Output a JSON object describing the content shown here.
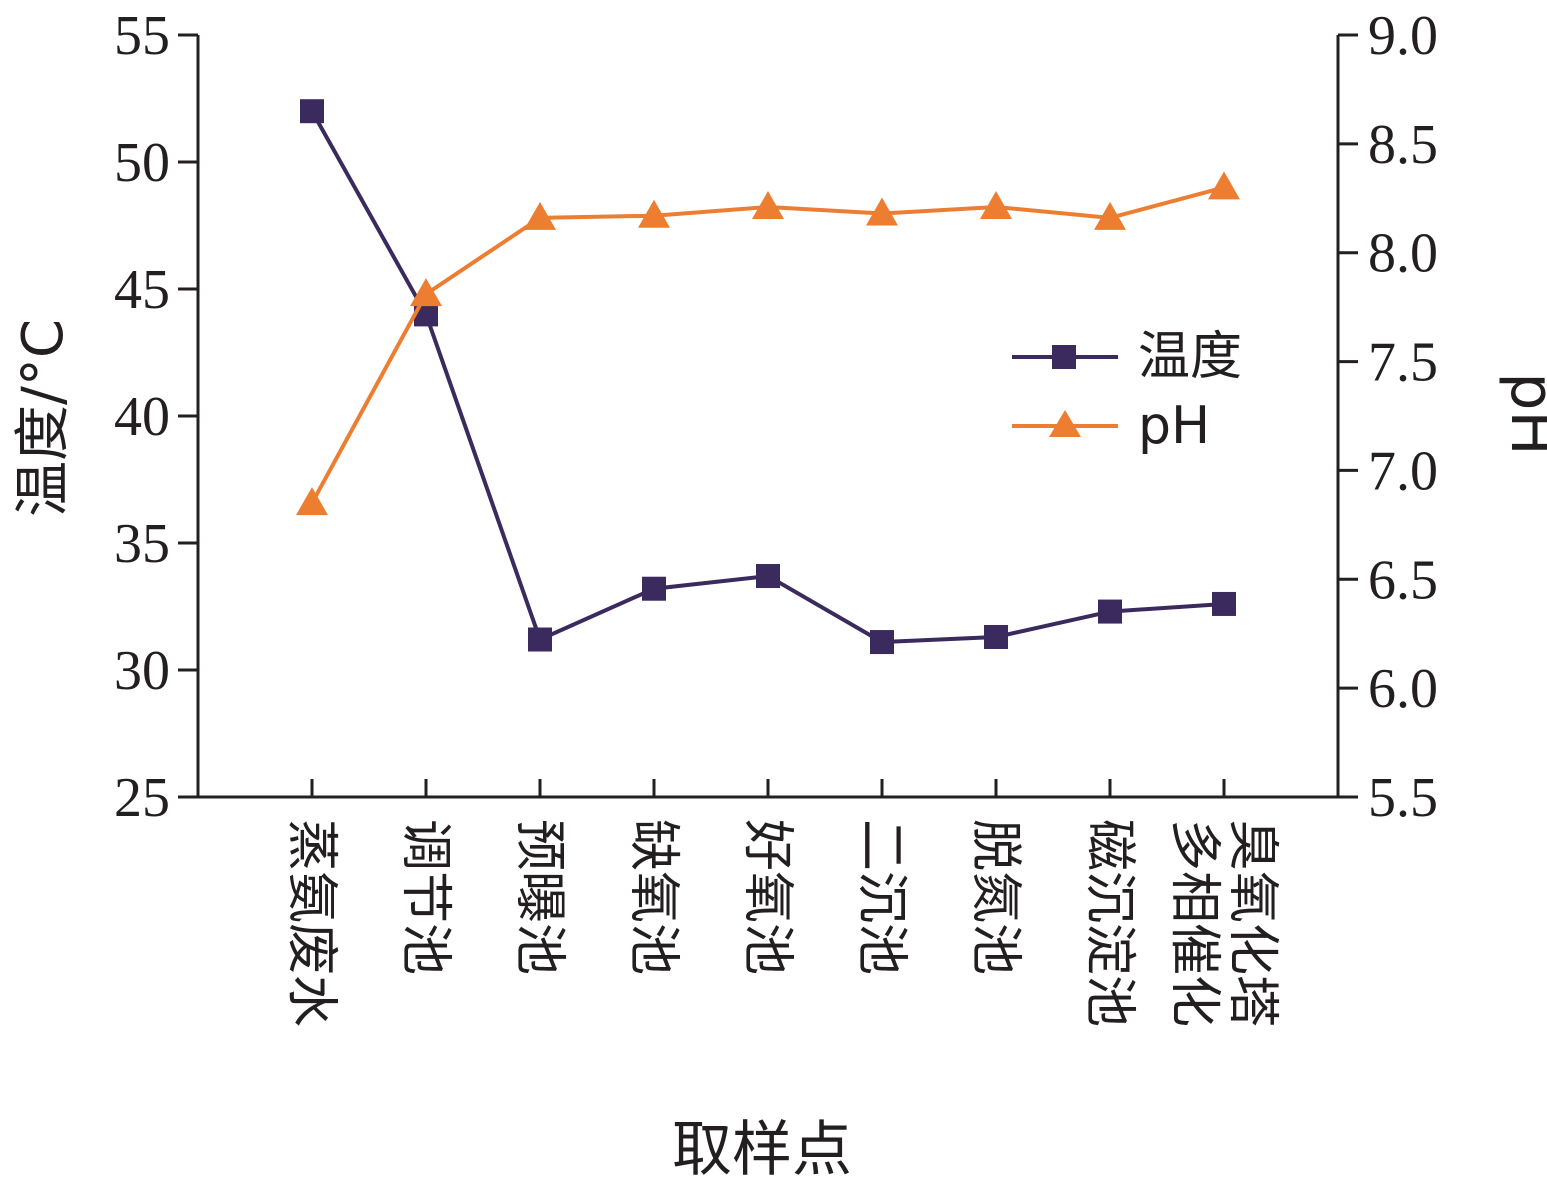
{
  "chart_data": {
    "type": "line",
    "xlabel": "取样点",
    "ylabel_left": "温度/°C",
    "ylabel_right": "pH",
    "categories": [
      [
        "蒸氨废水"
      ],
      [
        "调节池"
      ],
      [
        "预曝池"
      ],
      [
        "缺氧池"
      ],
      [
        "好氧池"
      ],
      [
        "二沉池"
      ],
      [
        "脱氮池"
      ],
      [
        "磁沉淀池"
      ],
      [
        "多相催化",
        "臭氧化塔"
      ]
    ],
    "y_left": {
      "range": [
        25,
        55
      ],
      "ticks": [
        "25",
        "30",
        "35",
        "40",
        "45",
        "50",
        "55"
      ]
    },
    "y_right": {
      "range": [
        5.5,
        9.0
      ],
      "ticks": [
        "5.5",
        "6.0",
        "6.5",
        "7.0",
        "7.5",
        "8.0",
        "8.5",
        "9.0"
      ]
    },
    "series": [
      {
        "name": "温度",
        "axis": "left",
        "marker": "square",
        "color": "#3b2a5e",
        "values": [
          52.0,
          44.0,
          31.2,
          33.2,
          33.7,
          31.1,
          31.3,
          32.3,
          32.6
        ]
      },
      {
        "name": "pH",
        "axis": "right",
        "marker": "triangle",
        "color": "#ed7d31",
        "values": [
          6.85,
          7.81,
          8.16,
          8.17,
          8.21,
          8.18,
          8.21,
          8.16,
          8.3
        ]
      }
    ],
    "legend": {
      "position": "right-middle"
    },
    "grid": false
  }
}
